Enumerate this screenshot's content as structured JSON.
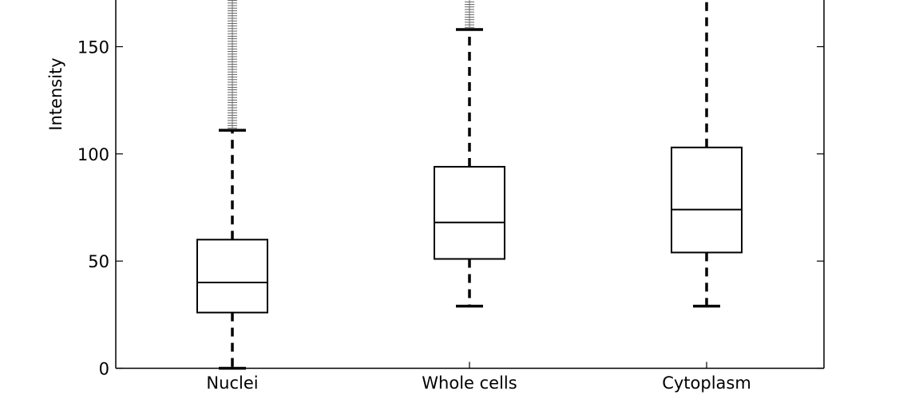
{
  "chart_data": {
    "type": "box",
    "ylabel": "Intensity",
    "xlabel": "",
    "title": "",
    "ylim": [
      0,
      175
    ],
    "yticks": [
      "0",
      "50",
      "100",
      "150"
    ],
    "grid": false,
    "categories": [
      "Nuclei",
      "Whole cells",
      "Cytoplasm"
    ],
    "boxes": [
      {
        "category": "Nuclei",
        "whisker_low": 0,
        "q1": 26,
        "median": 40,
        "q3": 60,
        "whisker_high": 111,
        "outliers_from": 112,
        "outliers_to": 175
      },
      {
        "category": "Whole cells",
        "whisker_low": 29,
        "q1": 51,
        "median": 68,
        "q3": 94,
        "whisker_high": 158,
        "outliers_from": 159,
        "outliers_to": 175
      },
      {
        "category": "Cytoplasm",
        "whisker_low": 29,
        "q1": 54,
        "median": 74,
        "q3": 103,
        "whisker_high": 175,
        "outliers_from": null,
        "outliers_to": null
      }
    ]
  }
}
